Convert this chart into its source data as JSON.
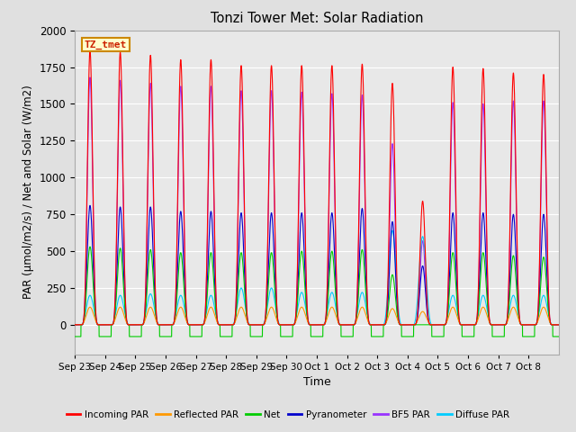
{
  "title": "Tonzi Tower Met: Solar Radiation",
  "xlabel": "Time",
  "ylabel": "PAR (μmol/m2/s) / Net and Solar (W/m2)",
  "ylim": [
    -200,
    2000
  ],
  "background_color": "#e0e0e0",
  "plot_bg_color": "#e8e8e8",
  "label_box": "TZ_tmet",
  "x_tick_labels": [
    "Sep 23",
    "Sep 24",
    "Sep 25",
    "Sep 26",
    "Sep 27",
    "Sep 28",
    "Sep 29",
    "Sep 30",
    "Oct 1",
    "Oct 2",
    "Oct 3",
    "Oct 4",
    "Oct 5",
    "Oct 6",
    "Oct 7",
    "Oct 8"
  ],
  "series": {
    "incoming_par": {
      "color": "#ff0000",
      "label": "Incoming PAR",
      "peak": [
        1860,
        1850,
        1830,
        1800,
        1800,
        1760,
        1760,
        1760,
        1760,
        1770,
        1640,
        840,
        1750,
        1740,
        1710,
        1700
      ]
    },
    "reflected_par": {
      "color": "#ff9900",
      "label": "Reflected PAR",
      "peak": [
        120,
        120,
        120,
        120,
        120,
        120,
        120,
        120,
        120,
        120,
        110,
        90,
        120,
        120,
        120,
        120
      ]
    },
    "net": {
      "color": "#00cc00",
      "label": "Net",
      "peak": [
        530,
        520,
        510,
        490,
        490,
        490,
        490,
        500,
        500,
        510,
        340,
        0,
        490,
        490,
        470,
        460
      ]
    },
    "pyranometer": {
      "color": "#0000cc",
      "label": "Pyranometer",
      "peak": [
        810,
        800,
        800,
        770,
        770,
        760,
        760,
        760,
        760,
        790,
        700,
        400,
        760,
        760,
        750,
        750
      ]
    },
    "bf5_par": {
      "color": "#9933ff",
      "label": "BF5 PAR",
      "peak": [
        1680,
        1660,
        1640,
        1620,
        1620,
        1590,
        1590,
        1580,
        1570,
        1560,
        1230,
        570,
        1510,
        1500,
        1520,
        1520
      ]
    },
    "diffuse_par": {
      "color": "#00ccff",
      "label": "Diffuse PAR",
      "peak": [
        200,
        200,
        210,
        200,
        200,
        250,
        250,
        220,
        220,
        220,
        640,
        600,
        200,
        200,
        200,
        200
      ]
    }
  },
  "days": 16,
  "points_per_day": 480
}
